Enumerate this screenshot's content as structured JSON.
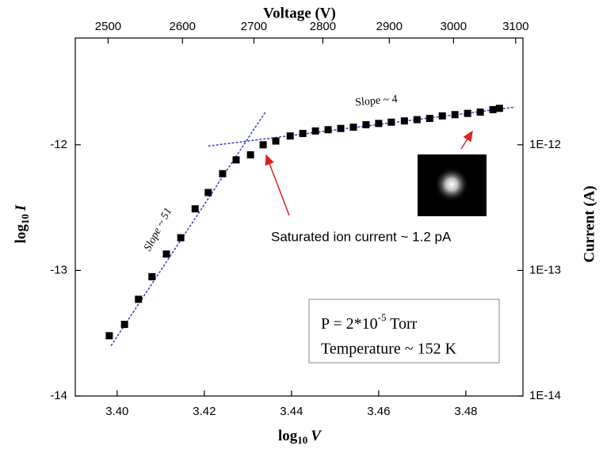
{
  "chart_data": {
    "type": "scatter",
    "title": "Voltage (V)",
    "x_label": {
      "text": "log",
      "sub": "10",
      "var": "V"
    },
    "y_label": {
      "text": "log",
      "sub": "10",
      "var": "I"
    },
    "y2_label": "Current (A)",
    "x": [
      3.3982,
      3.4017,
      3.4049,
      3.408,
      3.4113,
      3.4146,
      3.4179,
      3.4209,
      3.4242,
      3.4273,
      3.4306,
      3.4335,
      3.4364,
      3.4397,
      3.4426,
      3.4455,
      3.4484,
      3.4513,
      3.4542,
      3.4571,
      3.46,
      3.4629,
      3.4659,
      3.4688,
      3.4717,
      3.4746,
      3.4775,
      3.4804,
      3.4833,
      3.4862,
      3.4877
    ],
    "values": [
      -13.52,
      -13.43,
      -13.23,
      -13.05,
      -12.87,
      -12.74,
      -12.51,
      -12.38,
      -12.23,
      -12.12,
      -12.08,
      -12.0,
      -11.97,
      -11.93,
      -11.91,
      -11.89,
      -11.88,
      -11.87,
      -11.86,
      -11.84,
      -11.83,
      -11.82,
      -11.81,
      -11.8,
      -11.79,
      -11.77,
      -11.76,
      -11.75,
      -11.74,
      -11.72,
      -11.71
    ],
    "color": "#000000",
    "fit_lines": [
      {
        "x": [
          3.3986,
          3.434
        ],
        "y": [
          -13.6,
          -11.74
        ],
        "color": "#3a3acc"
      },
      {
        "x": [
          3.4209,
          3.4913
        ],
        "y": [
          -12.01,
          -11.7
        ],
        "color": "#3a3acc"
      }
    ],
    "xlim": [
      3.3904,
      3.4931
    ],
    "xticks": [
      {
        "value": 3.4,
        "label": "3.40"
      },
      {
        "value": 3.42,
        "label": "3.42"
      },
      {
        "value": 3.44,
        "label": "3.44"
      },
      {
        "value": 3.46,
        "label": "3.46"
      },
      {
        "value": 3.48,
        "label": "3.48"
      }
    ],
    "ylim": [
      -14,
      -11.15
    ],
    "yticks": [
      -14,
      -13,
      -12
    ],
    "x2log": true,
    "x2lim": [
      2457,
      3112
    ],
    "x2ticks": [
      2500,
      2600,
      2700,
      2800,
      2900,
      3000,
      3100
    ],
    "y2log": true,
    "y2lim": [
      1e-14,
      7.08e-12
    ],
    "y2ticks": [
      {
        "value": 1e-14,
        "label": "1E-14"
      },
      {
        "value": 1e-13,
        "label": "1E-13"
      },
      {
        "value": 1e-12,
        "label": "1E-12"
      }
    ],
    "annotations": {
      "slope_steep": "Slope ~ 51",
      "slope_flat": "Slope ~ 4",
      "saturated": "Saturated ion current ~ 1.2 pA",
      "pressure": {
        "text": "P = 2*10",
        "sup": "-5",
        "unit": " Torr"
      },
      "temperature": "Temperature ~ 152 K"
    }
  }
}
